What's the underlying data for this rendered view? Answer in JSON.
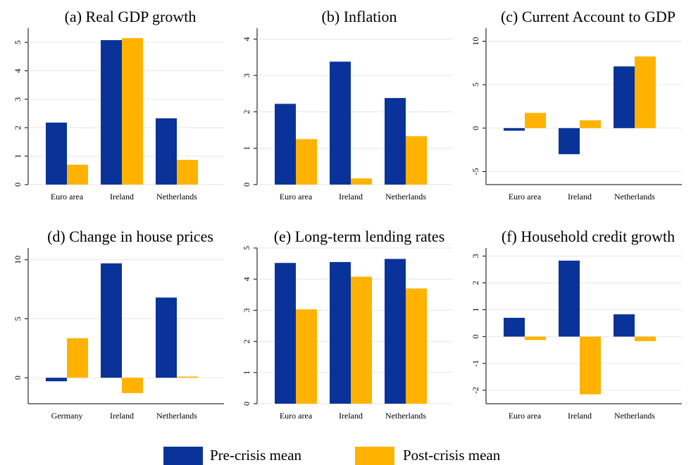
{
  "legend": [
    {
      "name": "Pre-crisis mean",
      "color": "#0a3399"
    },
    {
      "name": "Post-crisis mean",
      "color": "#ffb300"
    }
  ],
  "chart_data": [
    {
      "type": "bar",
      "title": "(a) Real GDP growth",
      "categories": [
        "Euro area",
        "Ireland",
        "Netherlands"
      ],
      "series": [
        {
          "values": [
            2.18,
            5.08,
            2.33
          ]
        },
        {
          "values": [
            0.7,
            5.15,
            0.87
          ]
        }
      ],
      "ylim": [
        0,
        5.5
      ],
      "yticks": [
        0,
        1,
        2,
        3,
        4,
        5
      ],
      "grid": true
    },
    {
      "type": "bar",
      "title": "(b) Inflation",
      "categories": [
        "Euro area",
        "Ireland",
        "Netherlands"
      ],
      "series": [
        {
          "values": [
            2.22,
            3.38,
            2.38
          ]
        },
        {
          "values": [
            1.25,
            0.17,
            1.33
          ]
        }
      ],
      "ylim": [
        0,
        4.3
      ],
      "yticks": [
        0,
        1,
        2,
        3,
        4
      ],
      "grid": true
    },
    {
      "type": "bar",
      "title": "(c) Current Account to GDP",
      "categories": [
        "Euro area",
        "Ireland",
        "Netherlands"
      ],
      "series": [
        {
          "values": [
            -0.3,
            -3.0,
            7.1
          ]
        },
        {
          "values": [
            1.75,
            0.9,
            8.25
          ]
        }
      ],
      "ylim": [
        -6.5,
        11.5
      ],
      "yticks": [
        -5,
        0,
        5,
        10
      ],
      "grid": true
    },
    {
      "type": "bar",
      "title": "(d) Change in house prices",
      "categories": [
        "Germany",
        "Ireland",
        "Netherlands"
      ],
      "series": [
        {
          "values": [
            -0.3,
            9.7,
            6.8
          ]
        },
        {
          "values": [
            3.35,
            -1.3,
            0.1
          ]
        }
      ],
      "ylim": [
        -2.2,
        11
      ],
      "yticks": [
        0,
        5,
        10
      ],
      "grid": true
    },
    {
      "type": "bar",
      "title": "(e) Long-term lending rates",
      "categories": [
        "Euro area",
        "Ireland",
        "Netherlands"
      ],
      "series": [
        {
          "values": [
            4.52,
            4.55,
            4.65
          ]
        },
        {
          "values": [
            3.03,
            4.08,
            3.7
          ]
        }
      ],
      "ylim": [
        0,
        5
      ],
      "yticks": [
        0,
        1,
        2,
        3,
        4,
        5
      ],
      "grid": true
    },
    {
      "type": "bar",
      "title": "(f) Household credit growth",
      "categories": [
        "Euro area",
        "Ireland",
        "Netherlands"
      ],
      "series": [
        {
          "values": [
            0.7,
            2.83,
            0.83
          ]
        },
        {
          "values": [
            -0.13,
            -2.15,
            -0.17
          ]
        }
      ],
      "ylim": [
        -2.5,
        3.3
      ],
      "yticks": [
        -2,
        -1,
        0,
        1,
        2,
        3
      ],
      "grid": true
    }
  ]
}
